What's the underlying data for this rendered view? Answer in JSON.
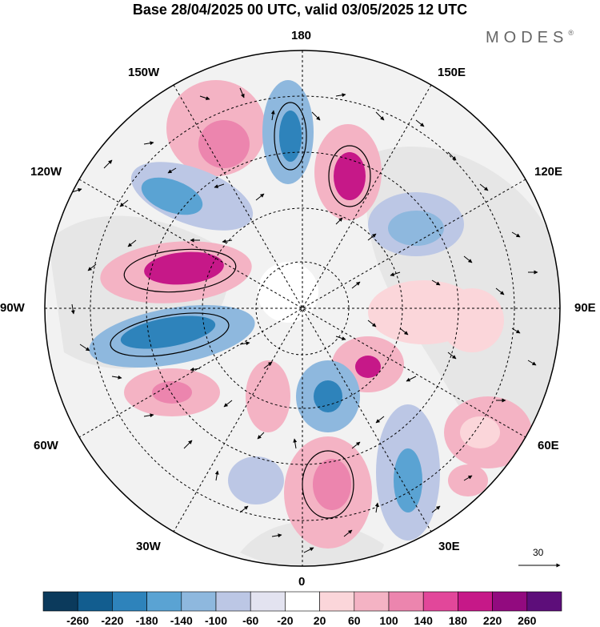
{
  "title": "Base 28/04/2025 00 UTC, valid 03/05/2025 12 UTC",
  "brand": "MODES",
  "brand_mark": "®",
  "longitude_labels": [
    {
      "id": "180",
      "text": "180"
    },
    {
      "id": "150w",
      "text": "150W"
    },
    {
      "id": "150e",
      "text": "150E"
    },
    {
      "id": "120w",
      "text": "120W"
    },
    {
      "id": "120e",
      "text": "120E"
    },
    {
      "id": "90w",
      "text": "90W"
    },
    {
      "id": "90e",
      "text": "90E"
    },
    {
      "id": "60w",
      "text": "60W"
    },
    {
      "id": "60e",
      "text": "60E"
    },
    {
      "id": "30w",
      "text": "30W"
    },
    {
      "id": "30e",
      "text": "30E"
    },
    {
      "id": "0",
      "text": "0"
    }
  ],
  "vector_scale_label": "30",
  "colorbar": {
    "colors": [
      "#0b3a5c",
      "#125d8f",
      "#2e83bb",
      "#5aa3d3",
      "#8eb8de",
      "#bcc7e5",
      "#e3e3f0",
      "#ffffff",
      "#fbd6da",
      "#f4b3c4",
      "#ec85ae",
      "#e2479a",
      "#c61888",
      "#920a7f",
      "#5d0e7a"
    ],
    "tick_labels": [
      "-260",
      "-220",
      "-180",
      "-140",
      "-100",
      "-60",
      "-20",
      "20",
      "60",
      "100",
      "140",
      "180",
      "220",
      "260"
    ]
  }
}
